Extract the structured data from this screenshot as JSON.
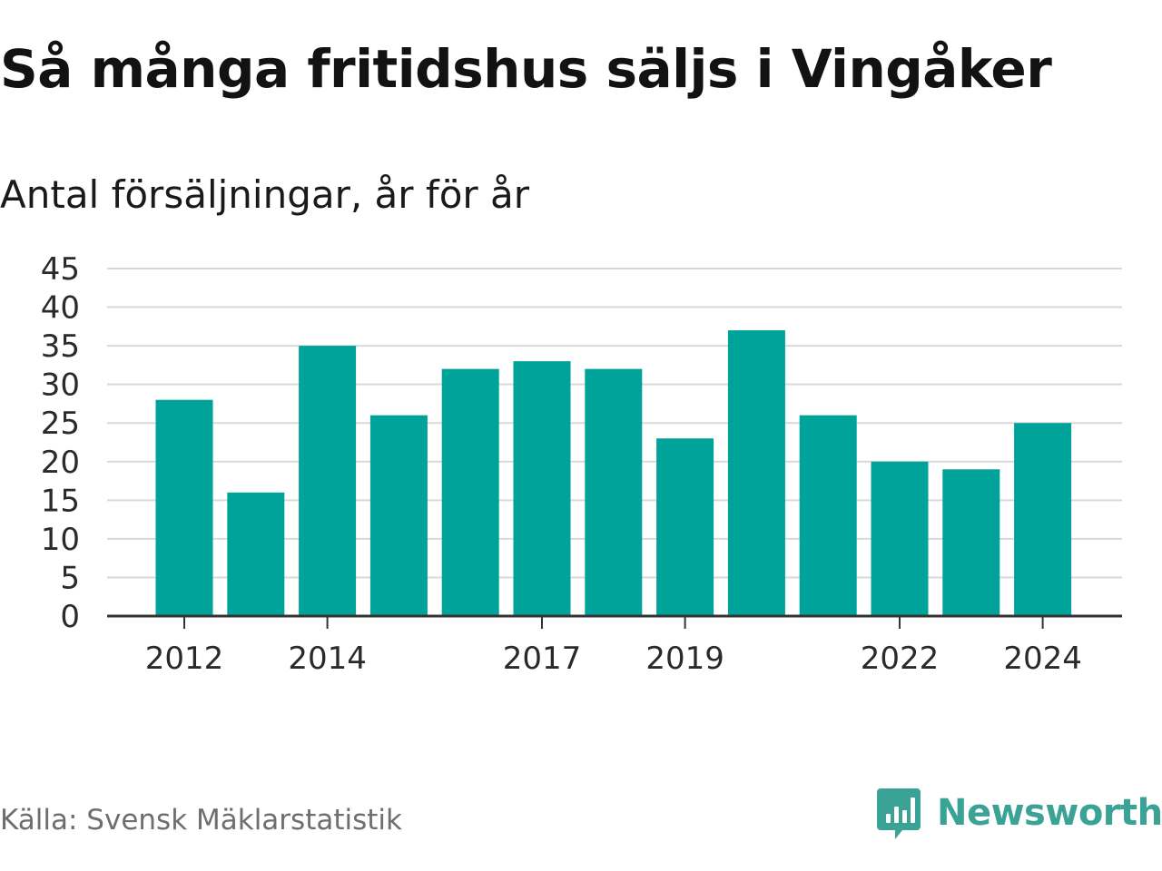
{
  "title": "Så många fritidshus säljs i Vingåker",
  "subtitle": "Antal försäljningar, år för år",
  "source": "Källa: Svensk Mäklarstatistik",
  "brand": "Newsworthy",
  "colors": {
    "bar": "#00a39a",
    "grid": "#d9d9d9",
    "axis": "#333333",
    "brand": "#3aa395"
  },
  "icons": {
    "logo": "newsworthy-logo-icon"
  },
  "chart_data": {
    "type": "bar",
    "categories": [
      "2012",
      "2013",
      "2014",
      "2015",
      "2016",
      "2017",
      "2018",
      "2019",
      "2020",
      "2021",
      "2022",
      "2023",
      "2024"
    ],
    "values": [
      28,
      16,
      35,
      26,
      32,
      33,
      32,
      23,
      37,
      26,
      20,
      19,
      25
    ],
    "x_tick_labels": [
      "2012",
      "2014",
      "2017",
      "2019",
      "2022",
      "2024"
    ],
    "y_ticks": [
      0,
      5,
      10,
      15,
      20,
      25,
      30,
      35,
      40,
      45
    ],
    "ylim": [
      0,
      45
    ],
    "grid": true,
    "legend": "none"
  }
}
